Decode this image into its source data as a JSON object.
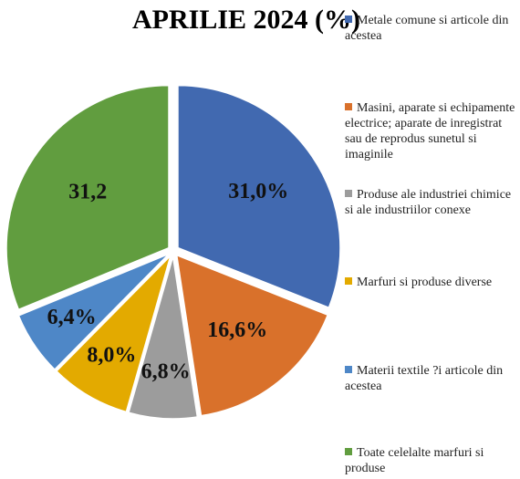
{
  "chart_data": {
    "type": "pie",
    "title": "APRILIE  2024 (%)",
    "categories": [
      "Metale comune si articole din acestea",
      "Masini, aparate si echipamente electrice; aparate de inregistrat sau de reprodus sunetul si imaginile",
      "Produse ale industriei chimice si ale industriilor conexe",
      "Marfuri si produse diverse",
      "Materii textile ?i articole din acestea",
      "Toate celelalte marfuri si produse"
    ],
    "values": [
      31.0,
      16.6,
      6.8,
      8.0,
      6.4,
      31.2
    ],
    "value_labels": [
      "31,0%",
      "16,6%",
      "6,8%",
      "8,0%",
      "6,4%",
      "31,2"
    ],
    "colors": [
      "#4169b0",
      "#d9712b",
      "#9c9c9c",
      "#e3aa00",
      "#4e87c7",
      "#619d3f"
    ],
    "legend": "right"
  }
}
